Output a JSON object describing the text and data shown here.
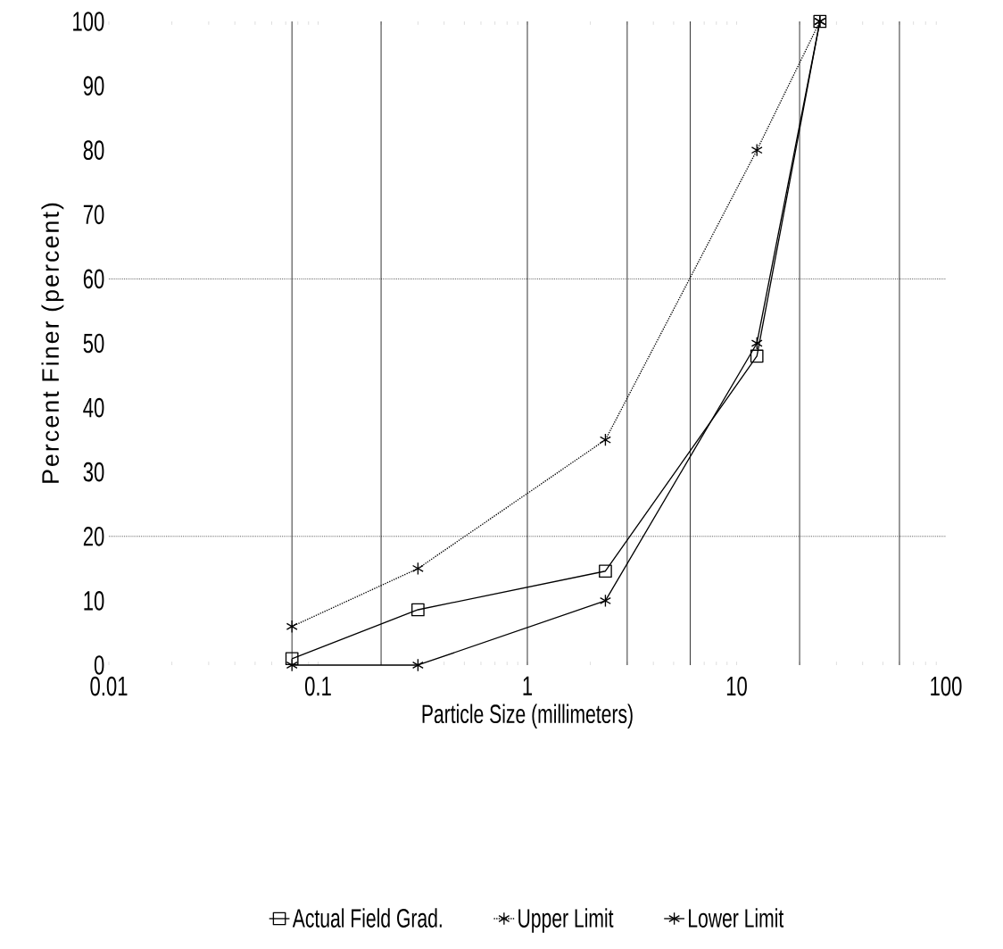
{
  "chart_data": {
    "type": "line",
    "xlabel": "Particle Size (millimeters)",
    "ylabel": "Percent Finer (percent)",
    "log": "x",
    "xlim": [
      0.01,
      100
    ],
    "xticks": [
      0.01,
      0.1,
      1,
      10,
      100
    ],
    "ylim": [
      0,
      100
    ],
    "yticks": [
      0,
      10,
      20,
      30,
      40,
      50,
      60,
      70,
      80,
      90,
      100
    ],
    "legend": "bottom",
    "series": [
      {
        "name": "Actual Field Grad.",
        "color": "#000000",
        "marker": "square",
        "line_style": "solid",
        "x": [
          0.075,
          0.3,
          2.36,
          12.5,
          25
        ],
        "values": [
          1,
          8.6,
          14.6,
          48,
          100
        ]
      },
      {
        "name": "Upper Limit",
        "color": "#000000",
        "marker": "cross",
        "line_style": "dotted",
        "x": [
          0.075,
          0.3,
          2.36,
          12.5,
          25
        ],
        "values": [
          6,
          15,
          35,
          80,
          100
        ]
      },
      {
        "name": "Lower Limit",
        "color": "#000000",
        "marker": "cross",
        "line_style": "solid",
        "x": [
          0.075,
          0.3,
          2.36,
          12.5,
          25
        ],
        "values": [
          0,
          0,
          10,
          50,
          100
        ]
      }
    ],
    "ref_lines": [
      {
        "axis": "x",
        "value": 0.075,
        "line_style": "solid"
      },
      {
        "axis": "x",
        "value": 0.2,
        "line_style": "solid"
      },
      {
        "axis": "x",
        "value": 1,
        "line_style": "solid"
      },
      {
        "axis": "x",
        "value": 3,
        "line_style": "solid"
      },
      {
        "axis": "x",
        "value": 6,
        "line_style": "solid"
      },
      {
        "axis": "x",
        "value": 20,
        "line_style": "solid"
      },
      {
        "axis": "x",
        "value": 60,
        "line_style": "solid"
      },
      {
        "axis": "y",
        "value": 20,
        "line_style": "dotted"
      },
      {
        "axis": "y",
        "value": 60,
        "line_style": "dotted"
      }
    ]
  }
}
